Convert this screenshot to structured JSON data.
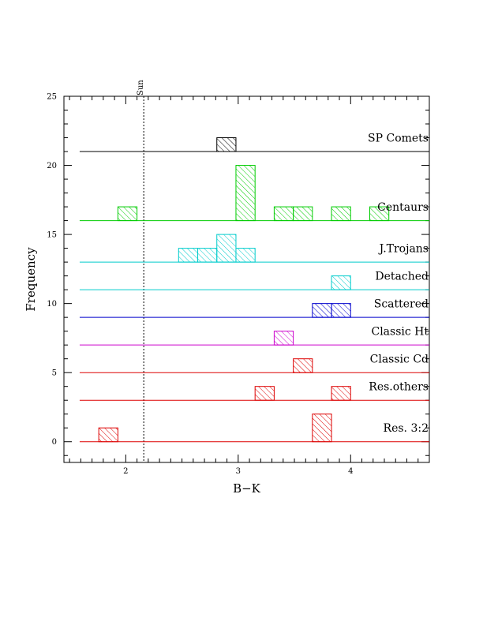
{
  "chart_data": {
    "type": "histogram",
    "xlabel": "B−K",
    "ylabel": "Frequency",
    "xlim": [
      1.45,
      4.7
    ],
    "ylim": [
      -1.5,
      25
    ],
    "xticks": [
      2,
      3,
      4
    ],
    "yticks": [
      0,
      5,
      10,
      15,
      20,
      25
    ],
    "bin_width": 0.17,
    "reference_line": {
      "x": 2.16,
      "label": "Sun",
      "style": "dotted"
    },
    "series": [
      {
        "name": "SP Comets",
        "color": "#000000",
        "offset": 21,
        "bins": [
          {
            "x0": 2.81,
            "count": 1
          }
        ]
      },
      {
        "name": "Centaurs",
        "color": "#00cc00",
        "offset": 16,
        "bins": [
          {
            "x0": 1.93,
            "count": 1
          },
          {
            "x0": 2.98,
            "count": 4
          },
          {
            "x0": 3.32,
            "count": 1
          },
          {
            "x0": 3.49,
            "count": 1
          },
          {
            "x0": 3.83,
            "count": 1
          },
          {
            "x0": 4.17,
            "count": 1
          }
        ]
      },
      {
        "name": "J.Trojans",
        "color": "#00cccc",
        "offset": 13,
        "bins": [
          {
            "x0": 2.47,
            "count": 1
          },
          {
            "x0": 2.64,
            "count": 1
          },
          {
            "x0": 2.81,
            "count": 2
          },
          {
            "x0": 2.98,
            "count": 1
          }
        ]
      },
      {
        "name": "Detached",
        "color": "#00cccc",
        "offset": 11,
        "bins": [
          {
            "x0": 3.83,
            "count": 1
          }
        ]
      },
      {
        "name": "Scattered",
        "color": "#0000cc",
        "offset": 9,
        "bins": [
          {
            "x0": 3.66,
            "count": 1
          },
          {
            "x0": 3.83,
            "count": 1
          }
        ]
      },
      {
        "name": "Classic Ht",
        "color": "#cc00cc",
        "offset": 7,
        "bins": [
          {
            "x0": 3.32,
            "count": 1
          }
        ]
      },
      {
        "name": "Classic Cd",
        "color": "#dd0000",
        "offset": 5,
        "bins": [
          {
            "x0": 3.49,
            "count": 1
          }
        ]
      },
      {
        "name": "Res.others",
        "color": "#dd0000",
        "offset": 3,
        "bins": [
          {
            "x0": 3.15,
            "count": 1
          },
          {
            "x0": 3.83,
            "count": 1
          }
        ]
      },
      {
        "name": "Res. 3:2",
        "color": "#dd0000",
        "offset": 0,
        "bins": [
          {
            "x0": 1.76,
            "count": 1
          },
          {
            "x0": 3.66,
            "count": 2
          }
        ]
      }
    ]
  }
}
